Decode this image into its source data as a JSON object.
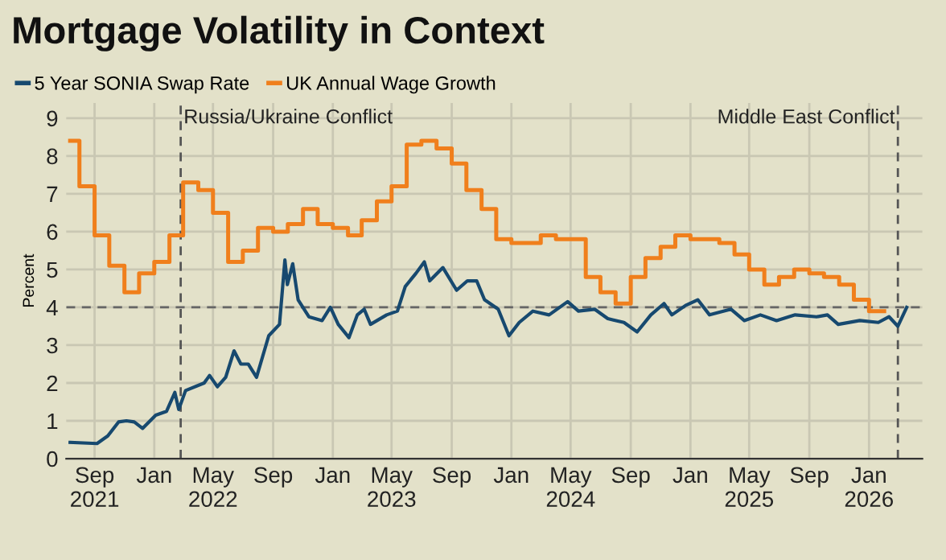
{
  "chart_data": {
    "type": "line",
    "title": "Mortgage Volatility in Context",
    "ylabel": "Percent",
    "series": [
      {
        "name": "5 Year SONIA Swap Rate",
        "color": "#17496f",
        "x": [
          "2021-07-13",
          "2021-09-06",
          "2021-09-28",
          "2021-10-20",
          "2021-11-05",
          "2021-11-21",
          "2021-12-08",
          "2022-01-04",
          "2022-01-26",
          "2022-02-12",
          "2022-02-20",
          "2022-03-06",
          "2022-04-13",
          "2022-04-24",
          "2022-05-10",
          "2022-05-27",
          "2022-06-13",
          "2022-06-27",
          "2022-07-12",
          "2022-07-29",
          "2022-08-23",
          "2022-09-14",
          "2022-09-25",
          "2022-09-30",
          "2022-10-11",
          "2022-10-22",
          "2022-11-13",
          "2022-12-10",
          "2022-12-27",
          "2023-01-12",
          "2023-02-03",
          "2023-02-20",
          "2023-03-06",
          "2023-03-19",
          "2023-04-21",
          "2023-05-13",
          "2023-05-29",
          "2023-06-20",
          "2023-07-07",
          "2023-07-18",
          "2023-08-14",
          "2023-09-11",
          "2023-10-03",
          "2023-10-22",
          "2023-11-07",
          "2023-12-05",
          "2023-12-27",
          "2024-01-17",
          "2024-02-14",
          "2024-03-18",
          "2024-04-25",
          "2024-05-17",
          "2024-06-19",
          "2024-07-16",
          "2024-08-18",
          "2024-09-14",
          "2024-10-12",
          "2024-11-08",
          "2024-11-24",
          "2024-12-22",
          "2025-01-16",
          "2025-02-09",
          "2025-03-25",
          "2025-04-21",
          "2025-05-24",
          "2025-06-26",
          "2025-08-03",
          "2025-09-16",
          "2025-10-08",
          "2025-10-30",
          "2025-12-13",
          "2026-01-20",
          "2026-02-11",
          "2026-03-01",
          "2026-03-19"
        ],
        "values": [
          0.43,
          0.4,
          0.6,
          0.97,
          1.0,
          0.97,
          0.8,
          1.15,
          1.25,
          1.75,
          1.3,
          1.8,
          2.0,
          2.2,
          1.9,
          2.15,
          2.85,
          2.5,
          2.5,
          2.15,
          3.25,
          3.55,
          5.25,
          4.6,
          5.15,
          4.2,
          3.75,
          3.65,
          4.0,
          3.55,
          3.2,
          3.8,
          3.95,
          3.55,
          3.8,
          3.9,
          4.55,
          4.9,
          5.2,
          4.7,
          5.05,
          4.45,
          4.7,
          4.7,
          4.2,
          3.95,
          3.25,
          3.6,
          3.9,
          3.8,
          4.15,
          3.9,
          3.95,
          3.7,
          3.6,
          3.35,
          3.8,
          4.1,
          3.8,
          4.05,
          4.2,
          3.8,
          3.95,
          3.65,
          3.8,
          3.65,
          3.8,
          3.75,
          3.8,
          3.55,
          3.65,
          3.6,
          3.75,
          3.5,
          4.0
        ]
      },
      {
        "name": "UK Annual Wage Growth",
        "type": "step",
        "color": "#f07f1c",
        "x": [
          "2021-07-13",
          "2021-08",
          "2021-09",
          "2021-10",
          "2021-11",
          "2021-12",
          "2022-01",
          "2022-02",
          "2022-03",
          "2022-04",
          "2022-05",
          "2022-06",
          "2022-07",
          "2022-08",
          "2022-09",
          "2022-10",
          "2022-11",
          "2022-12",
          "2023-01",
          "2023-02",
          "2023-03",
          "2023-04",
          "2023-05",
          "2023-06",
          "2023-07",
          "2023-08",
          "2023-09",
          "2023-10",
          "2023-11",
          "2023-12",
          "2024-01",
          "2024-03",
          "2024-04",
          "2024-06",
          "2024-07",
          "2024-08",
          "2024-09",
          "2024-10",
          "2024-11",
          "2024-12",
          "2025-01",
          "2025-03",
          "2025-04",
          "2025-05",
          "2025-06",
          "2025-07",
          "2025-08",
          "2025-09",
          "2025-10",
          "2025-11",
          "2025-12",
          "2026-01",
          "2026-02"
        ],
        "values": [
          8.4,
          7.2,
          5.9,
          5.1,
          4.4,
          4.9,
          5.2,
          5.9,
          7.3,
          7.1,
          6.5,
          5.2,
          5.5,
          6.1,
          6.0,
          6.2,
          6.6,
          6.2,
          6.1,
          5.9,
          6.3,
          6.8,
          7.2,
          8.3,
          8.4,
          8.2,
          7.8,
          7.1,
          6.6,
          5.8,
          5.7,
          5.9,
          5.8,
          4.8,
          4.4,
          4.1,
          4.8,
          5.3,
          5.6,
          5.9,
          5.8,
          5.7,
          5.4,
          5.0,
          4.6,
          4.8,
          5.0,
          4.9,
          4.8,
          4.6,
          4.2,
          3.9,
          3.9
        ]
      }
    ],
    "xlim": [
      "2021-07-05",
      "2026-04-20"
    ],
    "xticks": [
      {
        "value": "2021-09",
        "label": "Sep\n2021"
      },
      {
        "value": "2022-01",
        "label": "Jan"
      },
      {
        "value": "2022-05",
        "label": "May\n2022"
      },
      {
        "value": "2022-09",
        "label": "Sep"
      },
      {
        "value": "2023-01",
        "label": "Jan"
      },
      {
        "value": "2023-05",
        "label": "May\n2023"
      },
      {
        "value": "2023-09",
        "label": "Sep"
      },
      {
        "value": "2024-01",
        "label": "Jan"
      },
      {
        "value": "2024-05",
        "label": "May\n2024"
      },
      {
        "value": "2024-09",
        "label": "Sep"
      },
      {
        "value": "2025-01",
        "label": "Jan"
      },
      {
        "value": "2025-05",
        "label": "May\n2025"
      },
      {
        "value": "2025-09",
        "label": "Sep"
      },
      {
        "value": "2026-01",
        "label": "Jan\n2026"
      }
    ],
    "ylim": [
      0,
      9.4
    ],
    "yticks": [
      0,
      1,
      2,
      3,
      4,
      5,
      6,
      7,
      8,
      9
    ],
    "ref_lines": [
      {
        "axis": "x",
        "value": "2022-02-24",
        "label": "Russia/Ukraine Conflict",
        "color": "#555555",
        "line_style": "dashed"
      },
      {
        "axis": "x",
        "value": "2026-03-01",
        "label": "Middle East Conflict",
        "color": "#555555",
        "line_style": "dashed"
      },
      {
        "axis": "y",
        "value": 4,
        "color": "#666666",
        "line_style": "dashed"
      }
    ],
    "grid": true,
    "legend": "top left"
  }
}
